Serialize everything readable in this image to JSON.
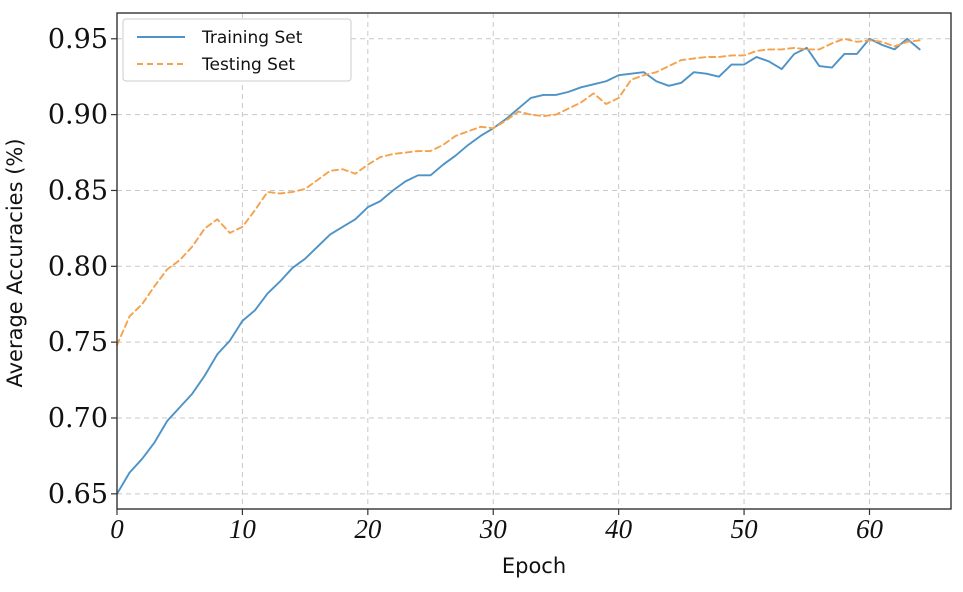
{
  "chart_data": {
    "type": "line",
    "xlabel": "Epoch",
    "ylabel": "Average Accuracies (%)",
    "xlim": [
      0,
      66.5
    ],
    "ylim": [
      0.64,
      0.967
    ],
    "xticks": [
      0,
      10,
      20,
      30,
      40,
      50,
      60
    ],
    "xtick_labels": [
      "0",
      "10",
      "20",
      "30",
      "40",
      "50",
      "60"
    ],
    "yticks": [
      0.65,
      0.7,
      0.75,
      0.8,
      0.85,
      0.9,
      0.95
    ],
    "ytick_labels": [
      "0.65",
      "0.70",
      "0.75",
      "0.80",
      "0.85",
      "0.90",
      "0.95"
    ],
    "grid": true,
    "legend_position": "top-left",
    "x": [
      0,
      1,
      2,
      3,
      4,
      5,
      6,
      7,
      8,
      9,
      10,
      11,
      12,
      13,
      14,
      15,
      16,
      17,
      18,
      19,
      20,
      21,
      22,
      23,
      24,
      25,
      26,
      27,
      28,
      29,
      30,
      31,
      32,
      33,
      34,
      35,
      36,
      37,
      38,
      39,
      40,
      41,
      42,
      43,
      44,
      45,
      46,
      47,
      48,
      49,
      50,
      51,
      52,
      53,
      54,
      55,
      56,
      57,
      58,
      59,
      60,
      61,
      62,
      63,
      64
    ],
    "series": [
      {
        "name": "Training Set",
        "color": "#4e93c7",
        "style": "solid",
        "values": [
          0.65,
          0.664,
          0.673,
          0.684,
          0.698,
          0.707,
          0.716,
          0.728,
          0.742,
          0.751,
          0.764,
          0.771,
          0.782,
          0.79,
          0.799,
          0.805,
          0.813,
          0.821,
          0.826,
          0.831,
          0.839,
          0.843,
          0.85,
          0.856,
          0.86,
          0.86,
          0.867,
          0.873,
          0.88,
          0.886,
          0.891,
          0.897,
          0.904,
          0.911,
          0.913,
          0.913,
          0.915,
          0.918,
          0.92,
          0.922,
          0.926,
          0.927,
          0.928,
          0.922,
          0.919,
          0.921,
          0.928,
          0.927,
          0.925,
          0.933,
          0.933,
          0.938,
          0.935,
          0.93,
          0.94,
          0.944,
          0.932,
          0.931,
          0.94,
          0.94,
          0.95,
          0.946,
          0.943,
          0.95,
          0.943
        ]
      },
      {
        "name": "Testing Set",
        "color": "#f5a24c",
        "style": "dashed",
        "values": [
          0.748,
          0.767,
          0.775,
          0.787,
          0.798,
          0.804,
          0.813,
          0.825,
          0.831,
          0.822,
          0.826,
          0.837,
          0.849,
          0.848,
          0.849,
          0.851,
          0.857,
          0.863,
          0.864,
          0.861,
          0.867,
          0.872,
          0.874,
          0.875,
          0.876,
          0.876,
          0.88,
          0.886,
          0.889,
          0.892,
          0.891,
          0.896,
          0.902,
          0.9,
          0.899,
          0.9,
          0.904,
          0.908,
          0.914,
          0.907,
          0.911,
          0.923,
          0.926,
          0.928,
          0.932,
          0.936,
          0.937,
          0.938,
          0.938,
          0.939,
          0.939,
          0.942,
          0.943,
          0.943,
          0.944,
          0.943,
          0.943,
          0.947,
          0.95,
          0.948,
          0.949,
          0.948,
          0.945,
          0.948,
          0.949
        ]
      }
    ]
  }
}
